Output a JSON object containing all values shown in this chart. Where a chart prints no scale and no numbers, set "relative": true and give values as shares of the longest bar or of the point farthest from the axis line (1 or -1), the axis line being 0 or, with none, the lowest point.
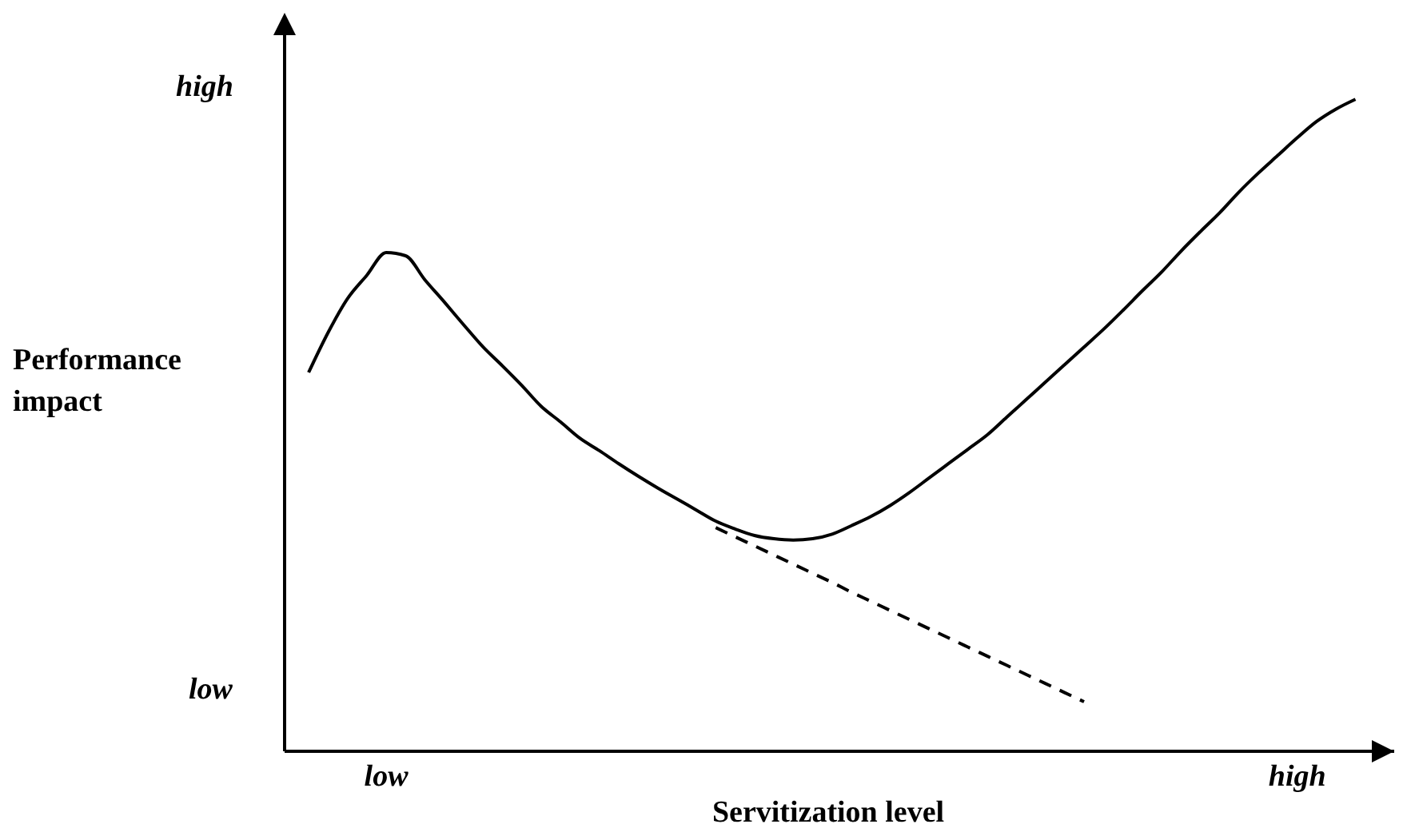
{
  "chart_data": {
    "type": "line",
    "relative": true,
    "xlabel": "Servitization level",
    "ylabel": "Performance impact",
    "annotations": [
      "high",
      "low"
    ],
    "categories": [
      null,
      null,
      null,
      null,
      "low",
      null,
      null,
      null,
      null,
      null,
      null,
      null,
      null,
      null,
      null,
      null,
      null,
      null,
      null,
      null,
      null,
      null,
      null,
      null,
      null,
      null,
      null,
      null,
      null,
      null,
      null,
      null,
      null,
      null,
      null,
      null,
      null,
      null,
      null,
      null,
      null,
      null,
      null,
      null,
      null,
      null,
      null,
      null,
      null,
      null,
      null,
      "high",
      null,
      null,
      null
    ],
    "series": [
      {
        "color": "#000000",
        "line_style": "solid",
        "values": [
          0.581,
          0.642,
          0.694,
          0.73,
          0.765,
          0.76,
          0.723,
          0.689,
          0.654,
          0.62,
          0.591,
          0.561,
          0.529,
          0.505,
          0.48,
          0.461,
          0.441,
          0.422,
          0.404,
          0.387,
          0.37,
          0.353,
          0.341,
          0.331,
          0.326,
          0.324,
          0.326,
          0.333,
          0.346,
          0.36,
          0.377,
          0.397,
          0.419,
          0.441,
          0.463,
          0.485,
          0.512,
          0.539,
          0.566,
          0.593,
          0.62,
          0.647,
          0.676,
          0.706,
          0.735,
          0.767,
          0.797,
          0.826,
          0.858,
          0.887,
          0.914,
          0.941,
          0.966,
          0.985,
          1
        ]
      },
      {
        "color": "#000000",
        "line_style": "dashed",
        "values": [
          null,
          null,
          null,
          null,
          null,
          null,
          null,
          null,
          null,
          null,
          null,
          null,
          null,
          null,
          null,
          null,
          null,
          null,
          null,
          null,
          null,
          0.343,
          0.329,
          0.315,
          0.301,
          0.287,
          0.273,
          0.259,
          0.244,
          0.23,
          0.216,
          0.202,
          0.188,
          0.174,
          0.16,
          0.146,
          0.132,
          0.118,
          0.104,
          0.09,
          0.076,
          null,
          null,
          null,
          null,
          null,
          null,
          null,
          null,
          null,
          null,
          null,
          null,
          null,
          null
        ]
      }
    ]
  }
}
